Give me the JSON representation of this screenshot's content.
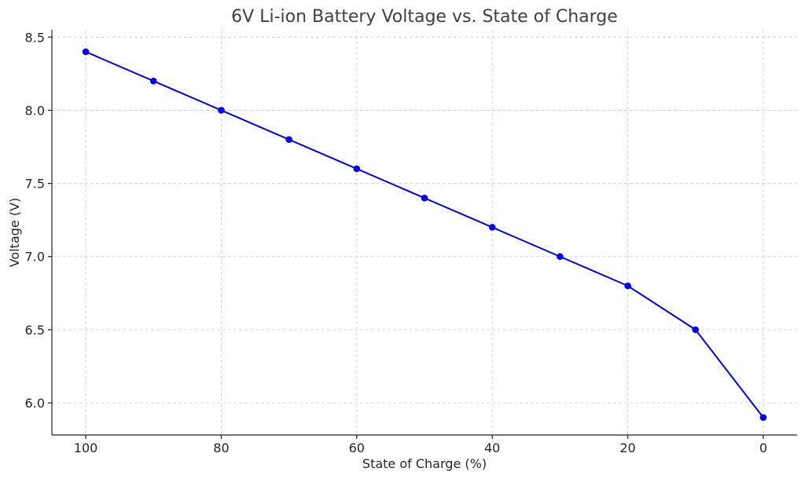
{
  "chart_data": {
    "type": "line",
    "title": "6V Li-ion Battery Voltage vs. State of Charge",
    "xlabel": "State of Charge (%)",
    "ylabel": "Voltage (V)",
    "x_inverted": true,
    "xlim": [
      105,
      -5
    ],
    "ylim": [
      5.78,
      8.55
    ],
    "xticks": [
      100,
      80,
      60,
      40,
      20,
      0
    ],
    "yticks": [
      6.0,
      6.5,
      7.0,
      7.5,
      8.0,
      8.5
    ],
    "ytick_labels": [
      "6.0",
      "6.5",
      "7.0",
      "7.5",
      "8.0",
      "8.5"
    ],
    "grid": true,
    "color": "#0000ee",
    "x": [
      100,
      90,
      80,
      70,
      60,
      50,
      40,
      30,
      20,
      10,
      0
    ],
    "series": [
      {
        "values": [
          8.4,
          8.2,
          8.0,
          7.8,
          7.6,
          7.4,
          7.2,
          7.0,
          6.8,
          6.5,
          5.9
        ]
      }
    ]
  }
}
